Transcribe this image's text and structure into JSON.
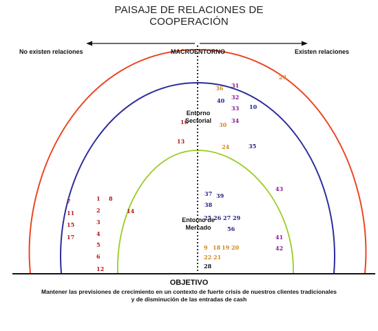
{
  "title_line1": "PAISAJE DE RELACIONES DE",
  "title_line2": "COOPERACIÓN",
  "labels": {
    "left": "No existen relaciones",
    "right": "Existen relaciones",
    "macro": "MACROENTORNO",
    "sectorial": "Entorno Sectorial",
    "mercado": "Entorno de Mercado"
  },
  "objective": {
    "heading": "OBJETIVO",
    "text": "Mantener las previsiones de crecimiento en un contexto de fuerte crisis de nuestros clientes tradicionales y de disminución de las entradas de cash"
  },
  "colors": {
    "outer_arc": "#ee4422",
    "middle_arc": "#2c2c9c",
    "inner_arc": "#99cc22",
    "red": "#b01818",
    "orange": "#cc8822",
    "navy": "#222288",
    "purple": "#881899",
    "black": "#111111"
  },
  "numbers": [
    {
      "n": "23",
      "c": "orange"
    },
    {
      "n": "36",
      "c": "orange"
    },
    {
      "n": "31",
      "c": "purple"
    },
    {
      "n": "40",
      "c": "navy"
    },
    {
      "n": "32",
      "c": "purple"
    },
    {
      "n": "33",
      "c": "purple"
    },
    {
      "n": "10",
      "c": "navy"
    },
    {
      "n": "16",
      "c": "red"
    },
    {
      "n": "30",
      "c": "orange"
    },
    {
      "n": "34",
      "c": "purple"
    },
    {
      "n": "13",
      "c": "red"
    },
    {
      "n": "24",
      "c": "orange"
    },
    {
      "n": "35",
      "c": "navy"
    },
    {
      "n": "43",
      "c": "purple"
    },
    {
      "n": "37",
      "c": "navy"
    },
    {
      "n": "39",
      "c": "navy"
    },
    {
      "n": "38",
      "c": "navy"
    },
    {
      "n": "1",
      "c": "red"
    },
    {
      "n": "8",
      "c": "red"
    },
    {
      "n": "7",
      "c": "red"
    },
    {
      "n": "2",
      "c": "red"
    },
    {
      "n": "14",
      "c": "red"
    },
    {
      "n": "11",
      "c": "red"
    },
    {
      "n": "3",
      "c": "red"
    },
    {
      "n": "15",
      "c": "red"
    },
    {
      "n": "25",
      "c": "navy"
    },
    {
      "n": "26",
      "c": "navy"
    },
    {
      "n": "27",
      "c": "navy"
    },
    {
      "n": "29",
      "c": "navy"
    },
    {
      "n": "4",
      "c": "red"
    },
    {
      "n": "17",
      "c": "red"
    },
    {
      "n": "5",
      "c": "red"
    },
    {
      "n": "6",
      "c": "red"
    },
    {
      "n": "12",
      "c": "red"
    },
    {
      "n": "56",
      "c": "navy"
    },
    {
      "n": "41",
      "c": "purple"
    },
    {
      "n": "9",
      "c": "orange"
    },
    {
      "n": "18",
      "c": "orange"
    },
    {
      "n": "19",
      "c": "orange"
    },
    {
      "n": "20",
      "c": "orange"
    },
    {
      "n": "42",
      "c": "purple"
    },
    {
      "n": "22",
      "c": "orange"
    },
    {
      "n": "21",
      "c": "orange"
    },
    {
      "n": "28",
      "c": "black"
    }
  ]
}
